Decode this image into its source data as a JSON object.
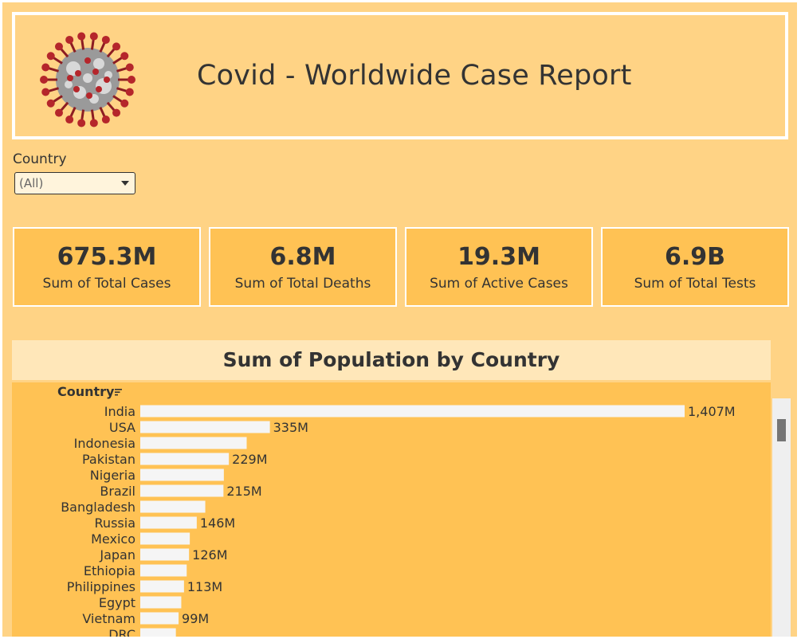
{
  "header": {
    "title": "Covid - Worldwide Case Report"
  },
  "filter": {
    "label": "Country",
    "value": "(All)"
  },
  "kpis": [
    {
      "value": "675.3M",
      "label": "Sum of Total Cases"
    },
    {
      "value": "6.8M",
      "label": "Sum of Total Deaths"
    },
    {
      "value": "19.3M",
      "label": "Sum of Active Cases"
    },
    {
      "value": "6.9B",
      "label": "Sum of Total Tests"
    }
  ],
  "colors": {
    "background": "#ffd385",
    "card": "#ffc254",
    "bar": "#f5f5f5",
    "virus_spike": "#b5262b"
  },
  "icons": {
    "header_image": "coronavirus-icon",
    "sort": "sort-descending-icon"
  },
  "chart_data": {
    "type": "bar",
    "orientation": "horizontal",
    "title": "Sum of Population by Country",
    "ylabel": "Country",
    "unit": "M",
    "categories": [
      "India",
      "USA",
      "Indonesia",
      "Pakistan",
      "Nigeria",
      "Brazil",
      "Bangladesh",
      "Russia",
      "Mexico",
      "Japan",
      "Ethiopia",
      "Philippines",
      "Egypt",
      "Vietnam",
      "DRC"
    ],
    "values": [
      1407,
      335,
      275,
      229,
      216,
      215,
      168,
      146,
      128,
      126,
      120,
      113,
      106,
      99,
      92
    ],
    "value_labels": [
      "1,407M",
      "335M",
      "",
      "229M",
      "",
      "215M",
      "",
      "146M",
      "",
      "126M",
      "",
      "113M",
      "",
      "99M",
      ""
    ],
    "xlim": [
      0,
      1407
    ]
  }
}
